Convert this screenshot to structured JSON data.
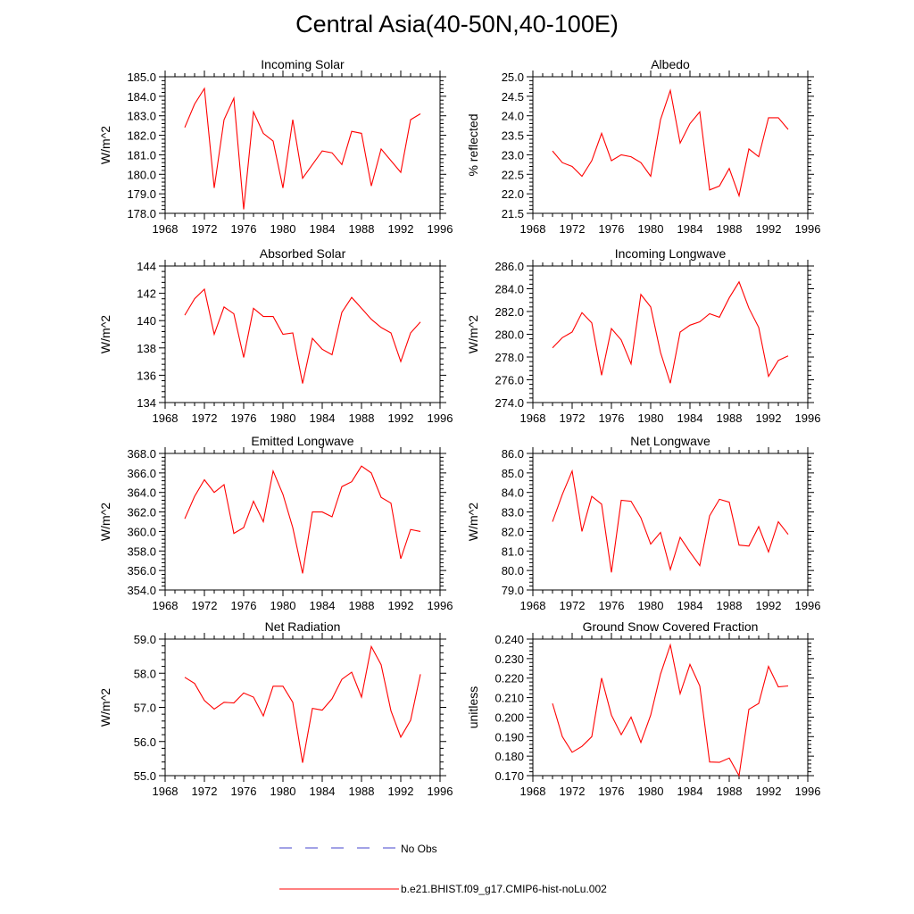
{
  "figure": {
    "title": "Central Asia(40-50N,40-100E)"
  },
  "colors": {
    "model_line": "#ff0000",
    "obs_line": "#4444cc",
    "axis": "#000000"
  },
  "legend": {
    "obs_label": "No Obs",
    "model_label": "b.e21.BHIST.f09_g17.CMIP6-hist-noLu.002"
  },
  "chart_data": [
    {
      "type": "line",
      "title": "Incoming Solar",
      "xlabel": "",
      "ylabel": "W/m^2",
      "xlim": [
        1968,
        1996
      ],
      "ylim": [
        178.0,
        185.0
      ],
      "xticks": [
        1968,
        1972,
        1976,
        1980,
        1984,
        1988,
        1992,
        1996
      ],
      "yticks": [
        "178.0",
        "179.0",
        "180.0",
        "181.0",
        "182.0",
        "183.0",
        "184.0",
        "185.0"
      ],
      "series": [
        {
          "x": [
            1970,
            1971,
            1972,
            1973,
            1974,
            1975,
            1976,
            1977,
            1978,
            1979,
            1980,
            1981,
            1982,
            1983,
            1984,
            1985,
            1986,
            1987,
            1988,
            1989,
            1990,
            1991,
            1992,
            1993,
            1994
          ],
          "y": [
            182.4,
            183.6,
            184.4,
            179.3,
            182.8,
            183.9,
            178.2,
            183.2,
            182.1,
            181.7,
            179.3,
            182.8,
            179.8,
            180.5,
            181.2,
            181.1,
            180.5,
            182.2,
            182.1,
            179.4,
            181.3,
            180.7,
            180.1,
            182.8,
            183.1
          ]
        }
      ]
    },
    {
      "type": "line",
      "title": "Albedo",
      "xlabel": "",
      "ylabel": "% reflected",
      "xlim": [
        1968,
        1996
      ],
      "ylim": [
        21.5,
        25.0
      ],
      "xticks": [
        1968,
        1972,
        1976,
        1980,
        1984,
        1988,
        1992,
        1996
      ],
      "yticks": [
        "21.5",
        "22.0",
        "22.5",
        "23.0",
        "23.5",
        "24.0",
        "24.5",
        "25.0"
      ],
      "series": [
        {
          "x": [
            1970,
            1971,
            1972,
            1973,
            1974,
            1975,
            1976,
            1977,
            1978,
            1979,
            1980,
            1981,
            1982,
            1983,
            1984,
            1985,
            1986,
            1987,
            1988,
            1989,
            1990,
            1991,
            1992,
            1993,
            1994
          ],
          "y": [
            23.1,
            22.8,
            22.7,
            22.45,
            22.85,
            23.55,
            22.85,
            23.0,
            22.95,
            22.8,
            22.45,
            23.9,
            24.65,
            23.3,
            23.8,
            24.1,
            22.1,
            22.2,
            22.65,
            21.95,
            23.15,
            22.95,
            23.95,
            23.95,
            23.65
          ]
        }
      ]
    },
    {
      "type": "line",
      "title": "Absorbed Solar",
      "xlabel": "",
      "ylabel": "W/m^2",
      "xlim": [
        1968,
        1996
      ],
      "ylim": [
        134,
        144
      ],
      "xticks": [
        1968,
        1972,
        1976,
        1980,
        1984,
        1988,
        1992,
        1996
      ],
      "yticks": [
        "134",
        "136",
        "138",
        "140",
        "142",
        "144"
      ],
      "series": [
        {
          "x": [
            1970,
            1971,
            1972,
            1973,
            1974,
            1975,
            1976,
            1977,
            1978,
            1979,
            1980,
            1981,
            1982,
            1983,
            1984,
            1985,
            1986,
            1987,
            1988,
            1989,
            1990,
            1991,
            1992,
            1993,
            1994
          ],
          "y": [
            140.4,
            141.6,
            142.3,
            139.0,
            141.0,
            140.5,
            137.3,
            140.9,
            140.3,
            140.3,
            139.0,
            139.1,
            135.4,
            138.7,
            137.9,
            137.5,
            140.6,
            141.7,
            140.9,
            140.1,
            139.5,
            139.1,
            137.0,
            139.1,
            139.9
          ]
        }
      ]
    },
    {
      "type": "line",
      "title": "Incoming Longwave",
      "xlabel": "",
      "ylabel": "W/m^2",
      "xlim": [
        1968,
        1996
      ],
      "ylim": [
        274.0,
        286.0
      ],
      "xticks": [
        1968,
        1972,
        1976,
        1980,
        1984,
        1988,
        1992,
        1996
      ],
      "yticks": [
        "274.0",
        "276.0",
        "278.0",
        "280.0",
        "282.0",
        "284.0",
        "286.0"
      ],
      "series": [
        {
          "x": [
            1970,
            1971,
            1972,
            1973,
            1974,
            1975,
            1976,
            1977,
            1978,
            1979,
            1980,
            1981,
            1982,
            1983,
            1984,
            1985,
            1986,
            1987,
            1988,
            1989,
            1990,
            1991,
            1992,
            1993,
            1994
          ],
          "y": [
            278.8,
            279.7,
            280.2,
            281.9,
            281.0,
            276.4,
            280.5,
            279.5,
            277.4,
            283.5,
            282.4,
            278.4,
            275.7,
            280.2,
            280.8,
            281.1,
            281.8,
            281.5,
            283.2,
            284.6,
            282.3,
            280.6,
            276.3,
            277.7,
            278.1
          ]
        }
      ]
    },
    {
      "type": "line",
      "title": "Emitted Longwave",
      "xlabel": "",
      "ylabel": "W/m^2",
      "xlim": [
        1968,
        1996
      ],
      "ylim": [
        354.0,
        368.0
      ],
      "xticks": [
        1968,
        1972,
        1976,
        1980,
        1984,
        1988,
        1992,
        1996
      ],
      "yticks": [
        "354.0",
        "356.0",
        "358.0",
        "360.0",
        "362.0",
        "364.0",
        "366.0",
        "368.0"
      ],
      "series": [
        {
          "x": [
            1970,
            1971,
            1972,
            1973,
            1974,
            1975,
            1976,
            1977,
            1978,
            1979,
            1980,
            1981,
            1982,
            1983,
            1984,
            1985,
            1986,
            1987,
            1988,
            1989,
            1990,
            1991,
            1992,
            1993,
            1994
          ],
          "y": [
            361.3,
            363.6,
            365.3,
            364.0,
            364.8,
            359.8,
            360.4,
            363.1,
            361.0,
            366.2,
            363.8,
            360.4,
            355.7,
            362.0,
            362.0,
            361.5,
            364.6,
            365.1,
            366.7,
            366.0,
            363.5,
            362.9,
            357.2,
            360.2,
            360.0
          ]
        }
      ]
    },
    {
      "type": "line",
      "title": "Net Longwave",
      "xlabel": "",
      "ylabel": "W/m^2",
      "xlim": [
        1968,
        1996
      ],
      "ylim": [
        79.0,
        86.0
      ],
      "xticks": [
        1968,
        1972,
        1976,
        1980,
        1984,
        1988,
        1992,
        1996
      ],
      "yticks": [
        "79.0",
        "80.0",
        "81.0",
        "82.0",
        "83.0",
        "84.0",
        "85.0",
        "86.0"
      ],
      "series": [
        {
          "x": [
            1970,
            1971,
            1972,
            1973,
            1974,
            1975,
            1976,
            1977,
            1978,
            1979,
            1980,
            1981,
            1982,
            1983,
            1984,
            1985,
            1986,
            1987,
            1988,
            1989,
            1990,
            1991,
            1992,
            1993,
            1994
          ],
          "y": [
            82.5,
            83.9,
            85.1,
            82.0,
            83.8,
            83.4,
            79.9,
            83.6,
            83.55,
            82.7,
            81.35,
            81.95,
            80.05,
            81.7,
            80.95,
            80.25,
            82.8,
            83.65,
            83.5,
            81.3,
            81.25,
            82.25,
            80.95,
            82.5,
            81.85
          ]
        }
      ]
    },
    {
      "type": "line",
      "title": "Net Radiation",
      "xlabel": "",
      "ylabel": "W/m^2",
      "xlim": [
        1968,
        1996
      ],
      "ylim": [
        55.0,
        59.0
      ],
      "xticks": [
        1968,
        1972,
        1976,
        1980,
        1984,
        1988,
        1992,
        1996
      ],
      "yticks": [
        "55.0",
        "56.0",
        "57.0",
        "58.0",
        "59.0"
      ],
      "series": [
        {
          "x": [
            1970,
            1971,
            1972,
            1973,
            1974,
            1975,
            1976,
            1977,
            1978,
            1979,
            1980,
            1981,
            1982,
            1983,
            1984,
            1985,
            1986,
            1987,
            1988,
            1989,
            1990,
            1991,
            1992,
            1993,
            1994
          ],
          "y": [
            57.88,
            57.7,
            57.2,
            56.95,
            57.15,
            57.13,
            57.42,
            57.3,
            56.75,
            57.62,
            57.62,
            57.15,
            55.38,
            56.97,
            56.92,
            57.25,
            57.82,
            58.03,
            57.3,
            58.78,
            58.25,
            56.9,
            56.13,
            56.62,
            57.97
          ]
        }
      ]
    },
    {
      "type": "line",
      "title": "Ground Snow Covered Fraction",
      "xlabel": "",
      "ylabel": "unitless",
      "xlim": [
        1968,
        1996
      ],
      "ylim": [
        0.17,
        0.24
      ],
      "xticks": [
        1968,
        1972,
        1976,
        1980,
        1984,
        1988,
        1992,
        1996
      ],
      "yticks": [
        "0.170",
        "0.180",
        "0.190",
        "0.200",
        "0.210",
        "0.220",
        "0.230",
        "0.240"
      ],
      "series": [
        {
          "x": [
            1970,
            1971,
            1972,
            1973,
            1974,
            1975,
            1976,
            1977,
            1978,
            1979,
            1980,
            1981,
            1982,
            1983,
            1984,
            1985,
            1986,
            1987,
            1988,
            1989,
            1990,
            1991,
            1992,
            1993,
            1994
          ],
          "y": [
            0.207,
            0.19,
            0.182,
            0.185,
            0.19,
            0.22,
            0.201,
            0.191,
            0.2,
            0.187,
            0.201,
            0.222,
            0.237,
            0.212,
            0.227,
            0.216,
            0.177,
            0.1768,
            0.179,
            0.17,
            0.204,
            0.207,
            0.226,
            0.2155,
            0.216
          ]
        }
      ]
    }
  ]
}
